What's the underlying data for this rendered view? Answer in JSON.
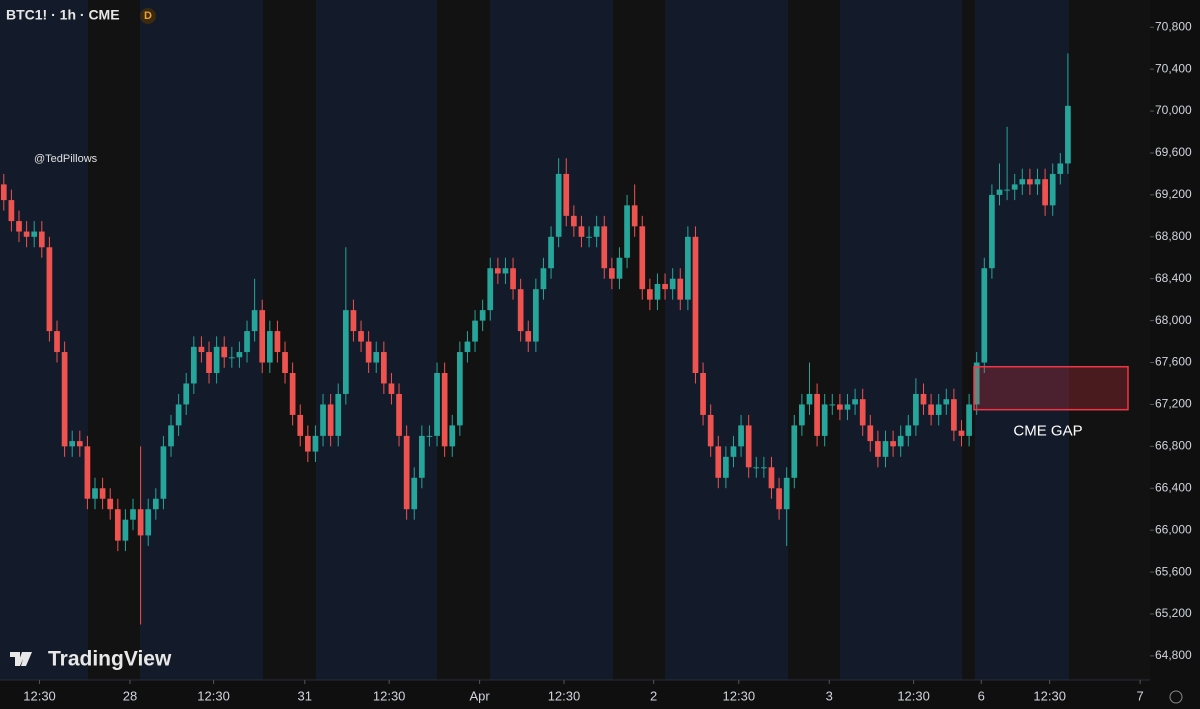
{
  "header": {
    "symbol": "BTC1! · 1h · CME",
    "badge": "D",
    "watermark": "@TedPillows",
    "brand": "TradingView"
  },
  "chart_data": {
    "type": "candlestick",
    "up_color": "#26a69a",
    "down_color": "#ef5350",
    "xlim": [
      -0.5,
      150.8
    ],
    "ylim": [
      64570,
      71060
    ],
    "xticks": [
      {
        "value": 4.7,
        "label": "12:30"
      },
      {
        "value": 16.6,
        "label": "28"
      },
      {
        "value": 27.6,
        "label": "12:30"
      },
      {
        "value": 39.6,
        "label": "31"
      },
      {
        "value": 50.7,
        "label": "12:30"
      },
      {
        "value": 62.6,
        "label": "Apr"
      },
      {
        "value": 73.7,
        "label": "12:30"
      },
      {
        "value": 85.5,
        "label": "2"
      },
      {
        "value": 96.7,
        "label": "12:30"
      },
      {
        "value": 108.6,
        "label": "3"
      },
      {
        "value": 119.7,
        "label": "12:30"
      },
      {
        "value": 128.6,
        "label": "6"
      },
      {
        "value": 137.6,
        "label": "12:30"
      },
      {
        "value": 149.5,
        "label": "7"
      }
    ],
    "yticks": [
      {
        "value": 64800,
        "label": "64,800"
      },
      {
        "value": 65200,
        "label": "65,200"
      },
      {
        "value": 65600,
        "label": "65,600"
      },
      {
        "value": 66000,
        "label": "66,000"
      },
      {
        "value": 66400,
        "label": "66,400"
      },
      {
        "value": 66800,
        "label": "66,800"
      },
      {
        "value": 67200,
        "label": "67,200"
      },
      {
        "value": 67600,
        "label": "67,600"
      },
      {
        "value": 68000,
        "label": "68,000"
      },
      {
        "value": 68400,
        "label": "68,400"
      },
      {
        "value": 68800,
        "label": "68,800"
      },
      {
        "value": 69200,
        "label": "69,200"
      },
      {
        "value": 69600,
        "label": "69,600"
      },
      {
        "value": 70000,
        "label": "70,000"
      },
      {
        "value": 70400,
        "label": "70,400"
      },
      {
        "value": 70800,
        "label": "70,800"
      }
    ],
    "gap": {
      "label": "CME GAP",
      "low": 67150,
      "high": 67560,
      "color": "#f23645"
    },
    "open": [
      69300,
      69150,
      68950,
      68850,
      68800,
      68850,
      68700,
      67900,
      67700,
      66800,
      66850,
      66800,
      66300,
      66400,
      66300,
      66200,
      65900,
      66100,
      66200,
      65950,
      66200,
      66300,
      66800,
      67000,
      67200,
      67400,
      67750,
      67700,
      67500,
      67750,
      67650,
      67650,
      67700,
      67900,
      68100,
      67600,
      67900,
      67700,
      67500,
      67100,
      66900,
      66750,
      66900,
      67200,
      66900,
      67300,
      68100,
      67900,
      67800,
      67600,
      67700,
      67400,
      67300,
      66900,
      66200,
      66500,
      66900,
      66900,
      67500,
      66800,
      67000,
      67700,
      67800,
      68000,
      68100,
      68500,
      68450,
      68500,
      68300,
      67900,
      67800,
      68300,
      68500,
      68800,
      69400,
      69000,
      68900,
      68800,
      68800,
      68900,
      68500,
      68400,
      68600,
      69100,
      68900,
      68300,
      68200,
      68350,
      68300,
      68400,
      68200,
      68800,
      67500,
      67100,
      66800,
      66500,
      66700,
      66800,
      67000,
      66600,
      66600,
      66600,
      66400,
      66200,
      66500,
      67000,
      67200,
      67300,
      66900,
      67200,
      67200,
      67150,
      67200,
      67250,
      67000,
      66850,
      66700,
      66850,
      66800,
      66900,
      67000,
      67300,
      67200,
      67100,
      67200,
      67250,
      66950,
      66900,
      67200,
      67600,
      68500,
      69200,
      69250,
      69250,
      69300,
      69350,
      69300,
      69350,
      69100,
      69400,
      69500
    ],
    "high": [
      69400,
      69250,
      69050,
      68950,
      68950,
      68950,
      68800,
      68000,
      67800,
      66950,
      66950,
      66900,
      66500,
      66500,
      66400,
      66300,
      66200,
      66300,
      66800,
      66300,
      66400,
      66900,
      67100,
      67300,
      67500,
      67850,
      67850,
      67800,
      67850,
      67850,
      67750,
      67800,
      68000,
      68400,
      68200,
      68000,
      68000,
      67800,
      67600,
      67200,
      67000,
      67000,
      67300,
      67300,
      67400,
      68700,
      68200,
      68000,
      67900,
      67800,
      67800,
      67500,
      67400,
      67000,
      66600,
      67000,
      67000,
      67600,
      67600,
      67100,
      67800,
      67900,
      68100,
      68200,
      68600,
      68600,
      68600,
      68600,
      68400,
      68000,
      68400,
      68600,
      68900,
      69550,
      69550,
      69100,
      69000,
      68900,
      69000,
      69000,
      68600,
      68700,
      69200,
      69300,
      69000,
      68400,
      68450,
      68450,
      68500,
      68500,
      68900,
      68900,
      67600,
      67200,
      66900,
      66800,
      66900,
      67100,
      67100,
      66700,
      66700,
      66700,
      66500,
      66600,
      67100,
      67300,
      67600,
      67400,
      67300,
      67300,
      67300,
      67300,
      67350,
      67350,
      67100,
      66950,
      66950,
      66950,
      67000,
      67100,
      67450,
      67400,
      67300,
      67300,
      67350,
      67350,
      67050,
      67300,
      67700,
      68600,
      69300,
      69500,
      69850,
      69400,
      69450,
      69450,
      69450,
      69450,
      69500,
      69600,
      70550
    ],
    "low": [
      69050,
      68850,
      68750,
      68700,
      68700,
      68600,
      67800,
      67600,
      66700,
      66700,
      66700,
      66200,
      66200,
      66200,
      66100,
      65800,
      65800,
      66000,
      65100,
      65850,
      66100,
      66200,
      66700,
      66900,
      67100,
      67300,
      67600,
      67400,
      67400,
      67550,
      67550,
      67550,
      67600,
      67800,
      67500,
      67500,
      67600,
      67400,
      67000,
      66800,
      66650,
      66650,
      66800,
      66800,
      66800,
      67200,
      67800,
      67700,
      67500,
      67500,
      67300,
      67200,
      66800,
      66100,
      66100,
      66400,
      66800,
      66800,
      66700,
      66700,
      66900,
      67600,
      67700,
      67900,
      68000,
      68350,
      68350,
      68200,
      67800,
      67700,
      67700,
      68200,
      68400,
      68700,
      68900,
      68800,
      68700,
      68700,
      68700,
      68400,
      68300,
      68300,
      68500,
      68800,
      68200,
      68100,
      68100,
      68200,
      68200,
      68100,
      68100,
      67400,
      67000,
      66700,
      66400,
      66400,
      66600,
      66700,
      66500,
      66500,
      66500,
      66300,
      66100,
      65850,
      66400,
      66900,
      67100,
      66800,
      66800,
      67100,
      67050,
      67050,
      67100,
      66900,
      66750,
      66600,
      66600,
      66700,
      66700,
      66800,
      66900,
      67100,
      67000,
      67000,
      67100,
      66850,
      66800,
      66800,
      67100,
      67500,
      68400,
      69100,
      69150,
      69150,
      69200,
      69200,
      69200,
      69000,
      69000,
      69300,
      69400
    ],
    "close": [
      69150,
      68950,
      68850,
      68800,
      68850,
      68700,
      67900,
      67700,
      66800,
      66850,
      66800,
      66300,
      66400,
      66300,
      66200,
      65900,
      66100,
      66200,
      65950,
      66200,
      66300,
      66800,
      67000,
      67200,
      67400,
      67750,
      67700,
      67500,
      67750,
      67650,
      67650,
      67700,
      67900,
      68100,
      67600,
      67900,
      67700,
      67500,
      67100,
      66900,
      66750,
      66900,
      67200,
      66900,
      67300,
      68100,
      67900,
      67800,
      67600,
      67700,
      67400,
      67300,
      66900,
      66200,
      66500,
      66900,
      66900,
      67500,
      66800,
      67000,
      67700,
      67800,
      68000,
      68100,
      68500,
      68450,
      68500,
      68300,
      67900,
      67800,
      68300,
      68500,
      68800,
      69400,
      69000,
      68900,
      68800,
      68800,
      68900,
      68500,
      68400,
      68600,
      69100,
      68900,
      68300,
      68200,
      68350,
      68300,
      68400,
      68200,
      68800,
      67500,
      67100,
      66800,
      66500,
      66700,
      66800,
      67000,
      66600,
      66600,
      66600,
      66400,
      66200,
      66500,
      67000,
      67200,
      67300,
      66900,
      67200,
      67200,
      67150,
      67200,
      67250,
      67000,
      66850,
      66700,
      66850,
      66800,
      66900,
      67000,
      67300,
      67200,
      67100,
      67200,
      67250,
      66950,
      66900,
      67200,
      67600,
      68500,
      69200,
      69250,
      69250,
      69300,
      69350,
      69300,
      69350,
      69100,
      69400,
      69500,
      70050
    ]
  }
}
